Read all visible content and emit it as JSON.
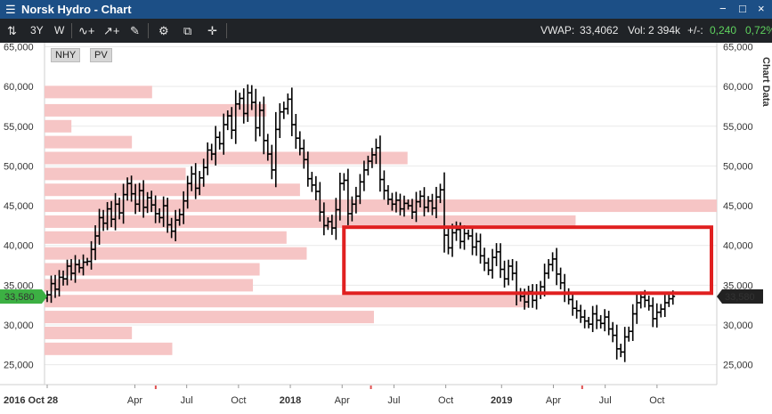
{
  "window": {
    "title": "Norsk Hydro - Chart",
    "menu_icon": "hamburger-icon",
    "controls": [
      "−",
      "□",
      "×"
    ]
  },
  "toolbar": {
    "period": "3Y",
    "interval": "W",
    "vwap_label": "VWAP:",
    "vwap_value": "33,4062",
    "vol_label": "Vol:",
    "vol_value": "2 394k",
    "change_label": "+/-:",
    "change_value": "0,240",
    "change_pct": "0,72%",
    "icons": [
      "ohlc-icon",
      "indicator-icon",
      "trend-icon",
      "draw-pen-icon",
      "settings-gear-icon",
      "layout-icon",
      "crosshair-icon"
    ]
  },
  "tags": {
    "symbol": "NHY",
    "pv": "PV"
  },
  "side_label": "Chart Data",
  "colors": {
    "accent": "#1c4f86",
    "price": "#000000",
    "volume_profile": "#f6c5c5",
    "highlight_rect": "#e02020",
    "last_price_bg": "#3cb043"
  },
  "chart_data": {
    "type": "ohlc",
    "title": "Norsk Hydro",
    "ylim": [
      22.5,
      65.5
    ],
    "yticks": [
      "65,000",
      "60,000",
      "55,000",
      "50,000",
      "45,000",
      "40,000",
      "35,000",
      "30,000",
      "25,000"
    ],
    "ytick_values": [
      65,
      60,
      55,
      50,
      45,
      40,
      35,
      30,
      25
    ],
    "xticks": [
      {
        "label": "2016 Oct 28",
        "t": 0
      },
      {
        "label": "Apr",
        "t": 22
      },
      {
        "label": "Jul",
        "t": 35
      },
      {
        "label": "Oct",
        "t": 48
      },
      {
        "label": "2018",
        "t": 61
      },
      {
        "label": "Apr",
        "t": 74
      },
      {
        "label": "Jul",
        "t": 87
      },
      {
        "label": "Oct",
        "t": 100
      },
      {
        "label": "2019",
        "t": 114
      },
      {
        "label": "Apr",
        "t": 127
      },
      {
        "label": "Jul",
        "t": 140
      },
      {
        "label": "Oct",
        "t": 153
      }
    ],
    "t_range": [
      0,
      168
    ],
    "last_price": "33,580",
    "last_value": 33.58,
    "series": [
      {
        "name": "NHY",
        "closes": [
          33.8,
          35.2,
          34.5,
          36.0,
          35.8,
          37.4,
          36.5,
          37.6,
          37.2,
          37.9,
          38.0,
          39.5,
          41.2,
          43.5,
          42.8,
          44.6,
          43.3,
          45.2,
          44.1,
          46.4,
          47.8,
          46.5,
          45.2,
          46.9,
          44.8,
          46.0,
          45.1,
          44.0,
          43.5,
          45.0,
          42.6,
          41.8,
          43.2,
          43.9,
          45.6,
          47.8,
          49.0,
          47.2,
          48.5,
          49.8,
          52.0,
          51.5,
          53.6,
          52.8,
          55.2,
          56.3,
          54.5,
          57.8,
          58.5,
          56.6,
          59.2,
          58.0,
          54.8,
          57.0,
          53.2,
          51.5,
          49.5,
          54.6,
          56.8,
          57.2,
          58.4,
          55.2,
          53.5,
          52.2,
          50.8,
          48.4,
          47.6,
          46.8,
          44.2,
          42.5,
          43.0,
          42.2,
          44.5,
          47.8,
          48.2,
          44.0,
          45.2,
          46.2,
          48.0,
          49.5,
          50.6,
          51.4,
          52.3,
          48.3,
          46.9,
          45.8,
          45.2,
          45.7,
          44.6,
          45.3,
          45.0,
          44.2,
          45.5,
          46.2,
          44.8,
          45.6,
          44.7,
          46.1,
          47.0,
          41.3,
          39.7,
          41.6,
          42.0,
          40.5,
          41.5,
          41.2,
          39.8,
          40.5,
          38.7,
          37.8,
          36.9,
          38.5,
          39.2,
          37.0,
          35.8,
          37.4,
          36.5,
          34.0,
          33.6,
          32.9,
          34.2,
          33.1,
          34.0,
          34.8,
          36.5,
          37.6,
          38.3,
          36.4,
          35.3,
          34.0,
          33.2,
          32.1,
          31.8,
          31.0,
          30.5,
          30.1,
          31.4,
          30.6,
          30.2,
          31.0,
          29.5,
          28.7,
          27.0,
          26.6,
          28.5,
          29.2,
          31.4,
          32.8,
          33.5,
          33.1,
          32.4,
          30.8,
          31.6,
          32.0,
          32.8,
          33.3,
          33.6
        ]
      }
    ],
    "volume_profile": [
      {
        "price": 59.3,
        "reach": 0.16
      },
      {
        "price": 57.0,
        "reach": 0.33
      },
      {
        "price": 55.0,
        "reach": 0.04
      },
      {
        "price": 53.0,
        "reach": 0.13
      },
      {
        "price": 51.0,
        "reach": 0.54
      },
      {
        "price": 49.0,
        "reach": 0.21
      },
      {
        "price": 47.0,
        "reach": 0.38
      },
      {
        "price": 45.0,
        "reach": 1.0
      },
      {
        "price": 43.0,
        "reach": 0.79
      },
      {
        "price": 41.0,
        "reach": 0.36
      },
      {
        "price": 39.0,
        "reach": 0.39
      },
      {
        "price": 37.0,
        "reach": 0.32
      },
      {
        "price": 35.0,
        "reach": 0.31
      },
      {
        "price": 33.0,
        "reach": 0.72
      },
      {
        "price": 31.0,
        "reach": 0.49
      },
      {
        "price": 29.0,
        "reach": 0.13
      },
      {
        "price": 27.0,
        "reach": 0.19
      }
    ],
    "highlight_range": {
      "t_from": 74,
      "t_to": 168,
      "price_high": 42.3,
      "price_low": 34.0
    },
    "grid": true,
    "volume_profile_anchor": "left"
  }
}
